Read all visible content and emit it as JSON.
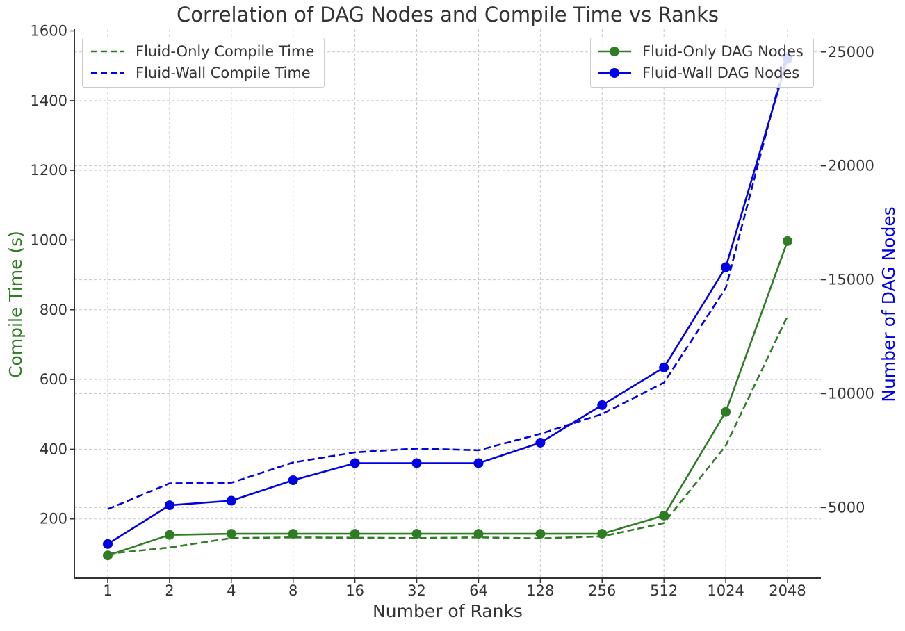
{
  "chart_data": {
    "type": "line",
    "title": "Correlation of DAG Nodes and Compile Time vs Ranks",
    "xlabel": "Number of Ranks",
    "ylabel_left": "Compile Time (s)",
    "ylabel_right": "Number of DAG Nodes",
    "categories": [
      "1",
      "2",
      "4",
      "8",
      "16",
      "32",
      "64",
      "128",
      "256",
      "512",
      "1024",
      "2048"
    ],
    "ylim_left": [
      30,
      1605
    ],
    "ylim_right": [
      1900,
      26000
    ],
    "yticks_left": [
      200,
      400,
      600,
      800,
      1000,
      1200,
      1400,
      1600
    ],
    "yticks_right": [
      5000,
      10000,
      15000,
      20000,
      25000
    ],
    "grid": true,
    "colors": {
      "fluid_only": "#2e7d24",
      "fluid_wall": "#0000e6",
      "left_axis_label": "#2e7d24",
      "right_axis_label": "#0000e6",
      "grid": "#c8c8c8",
      "text": "#333333"
    },
    "series": [
      {
        "name": "Fluid-Only Compile Time",
        "axis": "left",
        "style": "dashed",
        "color_key": "fluid_only",
        "values": [
          100,
          118,
          145,
          147,
          146,
          145,
          147,
          144,
          150,
          188,
          410,
          782
        ]
      },
      {
        "name": "Fluid-Wall Compile Time",
        "axis": "left",
        "style": "dashed",
        "color_key": "fluid_wall",
        "values": [
          228,
          302,
          304,
          362,
          391,
          402,
          397,
          444,
          501,
          591,
          862,
          1542
        ]
      },
      {
        "name": "Fluid-Only DAG Nodes",
        "axis": "right",
        "style": "solid-marker",
        "color_key": "fluid_only",
        "values": [
          2900,
          3800,
          3850,
          3850,
          3850,
          3850,
          3850,
          3850,
          3850,
          4650,
          9200,
          16700
        ]
      },
      {
        "name": "Fluid-Wall DAG Nodes",
        "axis": "right",
        "style": "solid-marker",
        "color_key": "fluid_wall",
        "values": [
          3400,
          5100,
          5300,
          6200,
          6950,
          6950,
          6950,
          7850,
          9500,
          11150,
          15550,
          24700
        ]
      }
    ],
    "legend_left": [
      "Fluid-Only Compile Time",
      "Fluid-Wall Compile Time"
    ],
    "legend_right": [
      "Fluid-Only DAG Nodes",
      "Fluid-Wall DAG Nodes"
    ],
    "legend_placement": [
      "top-left",
      "top-right"
    ]
  }
}
